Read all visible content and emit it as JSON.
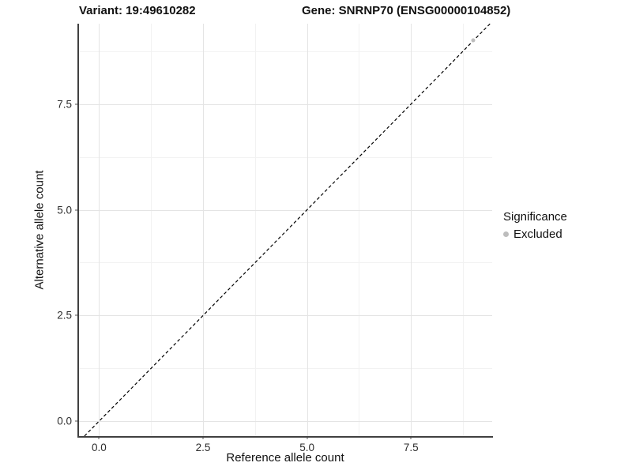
{
  "title": {
    "variant": "Variant: 19:49610282",
    "gene": "Gene: SNRNP70 (ENSG00000104852)"
  },
  "colors": {
    "axis_line": "#404040",
    "tick": "#555555",
    "grid_major": "#e4e4e4",
    "grid_minor": "#f2f2f2",
    "reference_line": "#000000",
    "excluded_point": "#bdbdbd"
  },
  "chart_data": {
    "type": "scatter",
    "title_left": "Variant: 19:49610282",
    "title_right": "Gene: SNRNP70 (ENSG00000104852)",
    "xlabel": "Reference allele count",
    "ylabel": "Alternative allele count",
    "xlim": [
      -0.5,
      9.45
    ],
    "ylim": [
      -0.35,
      9.4
    ],
    "x_major_ticks": [
      0.0,
      2.5,
      5.0,
      7.5
    ],
    "y_major_ticks": [
      0.0,
      2.5,
      5.0,
      7.5
    ],
    "x_tick_labels": [
      "0.0",
      "2.5",
      "5.0",
      "7.5"
    ],
    "y_tick_labels": [
      "0.0",
      "2.5",
      "5.0",
      "7.5"
    ],
    "x_minor_gridlines": [
      1.25,
      3.75,
      6.25,
      8.75
    ],
    "y_minor_gridlines": [
      1.25,
      3.75,
      6.25,
      8.75
    ],
    "grid": true,
    "reference_line": {
      "type": "identity",
      "style": "dashed",
      "color": "#000000"
    },
    "series": [
      {
        "name": "Excluded",
        "color": "#bdbdbd",
        "points": [
          {
            "x": 9,
            "y": 9
          }
        ]
      }
    ],
    "legend": {
      "title": "Significance",
      "position": "right",
      "entries": [
        {
          "label": "Excluded",
          "color": "#bdbdbd"
        }
      ]
    }
  }
}
